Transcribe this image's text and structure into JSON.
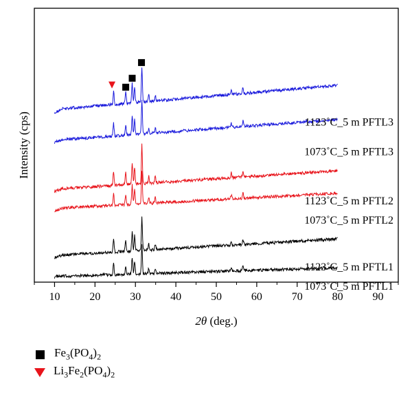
{
  "chart_data": {
    "type": "line",
    "xlabel_italic": "2θ",
    "xlabel_rest": " (deg.)",
    "ylabel": "Intensity (cps)",
    "xlim": [
      5,
      95
    ],
    "xticks": [
      10,
      20,
      30,
      40,
      50,
      60,
      70,
      80,
      90
    ],
    "yticks_shown": false,
    "grid": false,
    "series": [
      {
        "name": "1073˚C_5 m PFTL1",
        "color": "#000000",
        "offset": 0,
        "x_range": [
          10,
          80
        ],
        "start_level": 0.5,
        "end_level": 4.5,
        "scale": 0.85
      },
      {
        "name": "1123˚C_5 m PFTL1",
        "color": "#000000",
        "offset": 9,
        "x_range": [
          10,
          80
        ],
        "start_level": 1.5,
        "end_level": 9.0,
        "scale": 1.0
      },
      {
        "name": "1073˚C_5 m PFTL2",
        "color": "#e8141b",
        "offset": 31,
        "x_range": [
          10,
          80
        ],
        "start_level": 1.5,
        "end_level": 8.5,
        "scale": 1.0
      },
      {
        "name": "1123˚C_5 m PFTL2",
        "color": "#e8141b",
        "offset": 40,
        "x_range": [
          10,
          80
        ],
        "start_level": 1.5,
        "end_level": 10.0,
        "scale": 1.15
      },
      {
        "name": "1073˚C_5 m PFTL3",
        "color": "#1a1adc",
        "offset": 63,
        "x_range": [
          10,
          80
        ],
        "start_level": 1.5,
        "end_level": 11.0,
        "scale": 1.0
      },
      {
        "name": "1123˚C_5 m PFTL3",
        "color": "#1a1adc",
        "offset": 77,
        "x_range": [
          10,
          80
        ],
        "start_level": 2.0,
        "end_level": 13.0,
        "scale": 1.05
      }
    ],
    "peaks": [
      {
        "x": 24.6,
        "h": 6
      },
      {
        "x": 27.6,
        "h": 5
      },
      {
        "x": 29.2,
        "h": 9
      },
      {
        "x": 29.8,
        "h": 7
      },
      {
        "x": 31.6,
        "h": 16
      },
      {
        "x": 33.3,
        "h": 3
      },
      {
        "x": 34.9,
        "h": 2.5
      },
      {
        "x": 53.7,
        "h": 2
      },
      {
        "x": 56.6,
        "h": 2.5
      }
    ],
    "markers": [
      {
        "type": "Fe3(PO4)2",
        "x": 27.6,
        "symbol": "square",
        "color": "#000000"
      },
      {
        "type": "Fe3(PO4)2",
        "x": 29.2,
        "symbol": "square",
        "color": "#000000"
      },
      {
        "type": "Fe3(PO4)2",
        "x": 31.5,
        "symbol": "square",
        "color": "#000000"
      },
      {
        "type": "Li3Fe2(PO4)2",
        "x": 24.2,
        "symbol": "triangle",
        "color": "#e8141b"
      }
    ],
    "legend": {
      "placement": "bottom-left",
      "entries": [
        {
          "symbol": "square",
          "color": "#000000",
          "label_parts": [
            "Fe",
            "3",
            "(PO",
            "4",
            ")",
            "2"
          ]
        },
        {
          "symbol": "triangle",
          "color": "#e8141b",
          "label_parts": [
            "Li",
            "3",
            "Fe",
            "2",
            "(PO",
            "4",
            ")",
            "2"
          ]
        }
      ]
    }
  }
}
